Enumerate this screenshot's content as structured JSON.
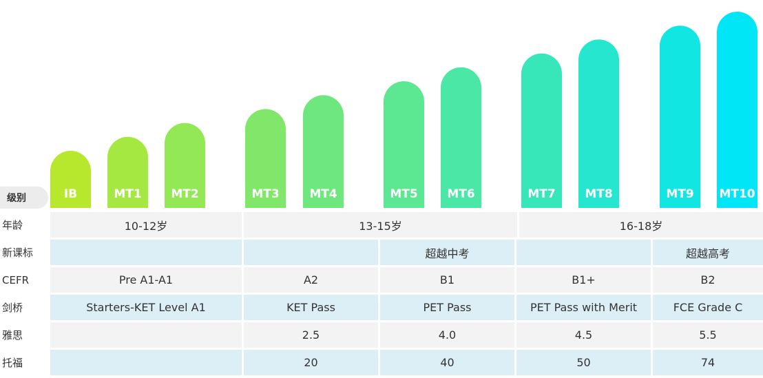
{
  "chart_data": {
    "type": "bar",
    "categories": [
      "IB",
      "MT1",
      "MT2",
      "MT3",
      "MT4",
      "MT5",
      "MT6",
      "MT7",
      "MT8",
      "MT9",
      "MT10"
    ],
    "values": [
      1,
      2,
      3,
      4,
      5,
      6,
      7,
      8,
      9,
      10,
      11
    ],
    "title": "",
    "xlabel": "",
    "ylabel": "",
    "ylim": [
      0,
      11
    ],
    "grid": false,
    "legend": "none",
    "colors": {
      "start": "#b8e82e",
      "end": "#00e6f6"
    }
  },
  "row_label": "级别",
  "table": {
    "rows": [
      {
        "head": "年龄",
        "style": "gray",
        "cells": [
          "10-12岁",
          "13-15岁",
          "16-18岁"
        ]
      },
      {
        "head": "新课标",
        "style": "blue",
        "cells": [
          "",
          "",
          "超越中考",
          "",
          "超越高考"
        ]
      },
      {
        "head": "CEFR",
        "style": "gray",
        "cells": [
          "Pre A1-A1",
          "A2",
          "B1",
          "B1+",
          "B2"
        ]
      },
      {
        "head": "剑桥",
        "style": "blue",
        "cells": [
          "Starters-KET Level A1",
          "KET Pass",
          "PET Pass",
          "PET Pass with Merit",
          "FCE Grade C"
        ]
      },
      {
        "head": "雅思",
        "style": "gray",
        "cells": [
          "",
          "2.5",
          "4.0",
          "4.5",
          "5.5"
        ]
      },
      {
        "head": "托福",
        "style": "blue",
        "cells": [
          "",
          "20",
          "40",
          "50",
          "74"
        ]
      }
    ]
  }
}
